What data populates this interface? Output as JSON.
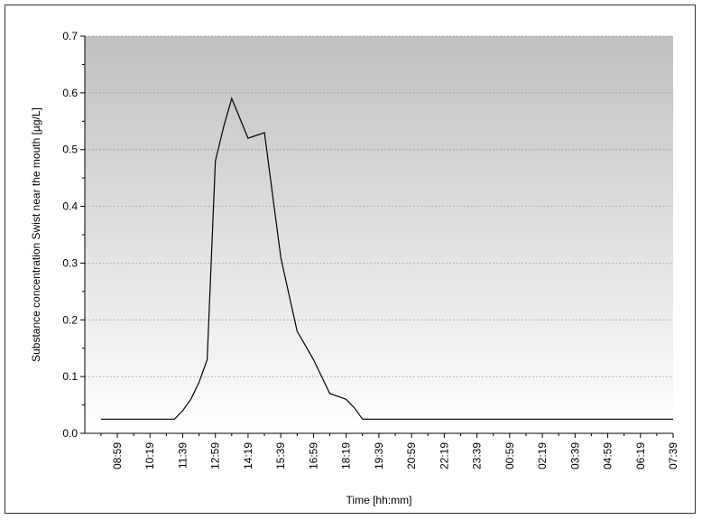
{
  "chart_data": {
    "type": "line",
    "xlabel": "Time [hh:mm]",
    "ylabel": "Substance concentration Swist near the mouth [µg/L]",
    "ylim": [
      0,
      0.7
    ],
    "yticks": [
      "0.0",
      "0.1",
      "0.2",
      "0.3",
      "0.4",
      "0.5",
      "0.6",
      "0.7"
    ],
    "xticks": [
      "08:59",
      "10:19",
      "11:39",
      "12:59",
      "14:19",
      "15:39",
      "16:59",
      "18:19",
      "19:39",
      "20:59",
      "22:19",
      "23:39",
      "00:59",
      "02:19",
      "03:39",
      "04:59",
      "06:19",
      "07:39"
    ],
    "x_time_minutes_per_tick": 80,
    "grid": true,
    "background": "gradient grey-to-white",
    "series": [
      {
        "x": [
          "08:19",
          "08:59",
          "09:39",
          "10:19",
          "10:59",
          "11:19",
          "11:39",
          "11:59",
          "12:19",
          "12:39",
          "12:59",
          "13:19",
          "13:39",
          "13:59",
          "14:19",
          "14:39",
          "14:59",
          "15:19",
          "15:39",
          "15:59",
          "16:19",
          "16:39",
          "16:59",
          "17:19",
          "17:39",
          "17:59",
          "18:19",
          "18:39",
          "18:59",
          "19:19",
          "07:39"
        ],
        "values": [
          0.025,
          0.025,
          0.025,
          0.025,
          0.025,
          0.025,
          0.04,
          0.06,
          0.09,
          0.13,
          0.48,
          0.54,
          0.59,
          0.555,
          0.52,
          0.525,
          0.53,
          0.42,
          0.31,
          0.245,
          0.18,
          0.155,
          0.13,
          0.1,
          0.07,
          0.065,
          0.06,
          0.045,
          0.025,
          0.025,
          0.025
        ],
        "color": "#000000"
      }
    ]
  }
}
